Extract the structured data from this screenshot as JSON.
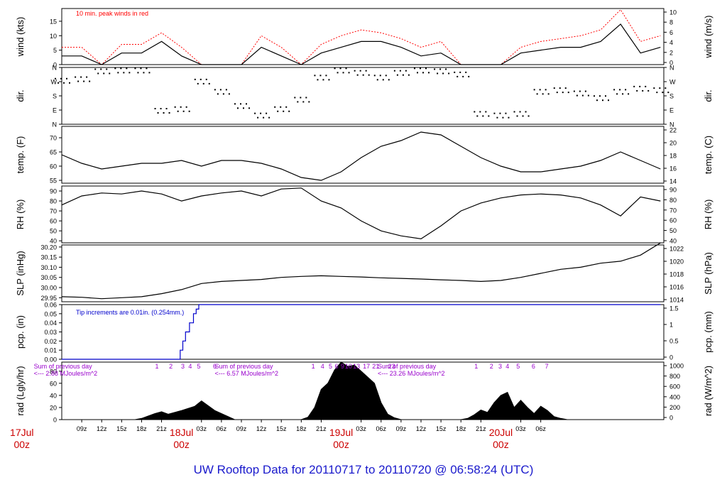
{
  "footer_title": "UW Rooftop Data for 20110717  to  20110720 @ 06:58:24  (UTC)",
  "colors": {
    "peak_winds": "#ff0000",
    "rain": "#0000cc",
    "annotation": "#9900cc",
    "date_label": "#cc0000",
    "footer": "#1a1acc"
  },
  "chart_data": [
    {
      "type": "line",
      "panel": "wind",
      "ylabel": "wind (kts)",
      "ylabel_right": "wind (m/s)",
      "ylim": [
        0,
        19.4
      ],
      "yticks_left": [
        0,
        5,
        10,
        15
      ],
      "yticks_right_labels": [
        "0",
        "2",
        "4",
        "6",
        "8",
        "10"
      ],
      "annotation": "10 min. peak winds in red",
      "series": [
        {
          "name": "10 min. peak winds",
          "x": [
            0,
            3,
            6,
            9,
            12,
            15,
            18,
            21,
            24,
            27,
            30,
            33,
            36,
            39,
            42,
            45,
            48,
            51,
            54,
            57,
            60,
            63,
            66,
            69,
            72,
            75,
            78,
            81,
            84,
            87,
            90
          ],
          "values": [
            6,
            6,
            0,
            7,
            7,
            11,
            6,
            0,
            0,
            0,
            10,
            6,
            0,
            7,
            10,
            12,
            11,
            9,
            6,
            8,
            0,
            0,
            0,
            6,
            8,
            9,
            10,
            12,
            19,
            8,
            10
          ]
        },
        {
          "name": "wind",
          "x": [
            0,
            3,
            6,
            9,
            12,
            15,
            18,
            21,
            24,
            27,
            30,
            33,
            36,
            39,
            42,
            45,
            48,
            51,
            54,
            57,
            60,
            63,
            66,
            69,
            72,
            75,
            78,
            81,
            84,
            87,
            90
          ],
          "values": [
            3,
            3,
            0,
            4,
            4,
            8,
            3,
            0,
            0,
            0,
            6,
            3,
            0,
            4,
            6,
            8,
            8,
            6,
            3,
            4,
            0,
            0,
            0,
            4,
            5,
            6,
            6,
            8,
            14,
            4,
            6
          ]
        }
      ]
    },
    {
      "type": "scatter",
      "panel": "dir",
      "ylabel": "dir.",
      "ylabel_right": "dir.",
      "ylim": [
        0,
        360
      ],
      "tick_labels": [
        "N",
        "E",
        "S",
        "W",
        "N"
      ],
      "series": [
        {
          "name": "dir",
          "x": [
            0,
            3,
            6,
            9,
            12,
            15,
            18,
            21,
            24,
            27,
            30,
            33,
            36,
            39,
            42,
            45,
            48,
            51,
            54,
            57,
            60,
            63,
            66,
            69,
            72,
            75,
            78,
            81,
            84,
            87,
            90
          ],
          "values": [
            280,
            290,
            340,
            345,
            345,
            90,
            100,
            275,
            210,
            120,
            60,
            100,
            160,
            300,
            345,
            330,
            300,
            330,
            345,
            340,
            320,
            70,
            60,
            70,
            210,
            220,
            200,
            170,
            210,
            230,
            220
          ]
        }
      ]
    },
    {
      "type": "line",
      "panel": "temp",
      "ylabel": "temp. (F)",
      "ylabel_right": "temp. (C)",
      "ylim": [
        54,
        74
      ],
      "yticks_left": [
        55,
        60,
        65,
        70
      ],
      "yticks_right_labels": [
        "14",
        "16",
        "18",
        "20",
        "22"
      ],
      "series": [
        {
          "name": "temp",
          "x": [
            0,
            3,
            6,
            9,
            12,
            15,
            18,
            21,
            24,
            27,
            30,
            33,
            36,
            39,
            42,
            45,
            48,
            51,
            54,
            57,
            60,
            63,
            66,
            69,
            72,
            75,
            78,
            81,
            84,
            87,
            90
          ],
          "values": [
            64,
            61,
            59,
            60,
            61,
            61,
            62,
            60,
            62,
            62,
            61,
            59,
            56,
            55,
            58,
            63,
            67,
            69,
            72,
            71,
            67,
            63,
            60,
            58,
            58,
            59,
            60,
            62,
            65,
            62,
            59
          ]
        }
      ]
    },
    {
      "type": "line",
      "panel": "rh",
      "ylabel": "RH (%)",
      "ylabel_right": "RH (%)",
      "ylim": [
        38,
        95
      ],
      "yticks_left": [
        40,
        50,
        60,
        70,
        80,
        90
      ],
      "yticks_right_labels": [
        "40",
        "50",
        "60",
        "70",
        "80",
        "90"
      ],
      "series": [
        {
          "name": "RH",
          "x": [
            0,
            3,
            6,
            9,
            12,
            15,
            18,
            21,
            24,
            27,
            30,
            33,
            36,
            39,
            42,
            45,
            48,
            51,
            54,
            57,
            60,
            63,
            66,
            69,
            72,
            75,
            78,
            81,
            84,
            87,
            90
          ],
          "values": [
            76,
            85,
            88,
            87,
            90,
            87,
            80,
            85,
            88,
            90,
            85,
            92,
            93,
            80,
            73,
            60,
            50,
            45,
            42,
            55,
            70,
            78,
            83,
            86,
            87,
            86,
            83,
            76,
            65,
            84,
            80
          ]
        }
      ]
    },
    {
      "type": "line",
      "panel": "slp",
      "ylabel": "SLP (inHg)",
      "ylabel_right": "SLP (hPa)",
      "ylim": [
        29.93,
        30.21
      ],
      "yticks_left": [
        29.95,
        30.0,
        30.05,
        30.1,
        30.15,
        30.2
      ],
      "yticks_right_labels": [
        "1014",
        "1016",
        "1018",
        "1020",
        "1022"
      ],
      "series": [
        {
          "name": "SLP",
          "x": [
            0,
            3,
            6,
            9,
            12,
            15,
            18,
            21,
            24,
            27,
            30,
            33,
            36,
            39,
            42,
            45,
            48,
            51,
            54,
            57,
            60,
            63,
            66,
            69,
            72,
            75,
            78,
            81,
            84,
            87,
            90
          ],
          "values": [
            29.955,
            29.952,
            29.945,
            29.95,
            29.955,
            29.97,
            29.99,
            30.02,
            30.03,
            30.035,
            30.04,
            30.05,
            30.055,
            30.058,
            30.055,
            30.052,
            30.048,
            30.045,
            30.042,
            30.038,
            30.035,
            30.03,
            30.035,
            30.05,
            30.07,
            30.09,
            30.1,
            30.12,
            30.13,
            30.16,
            30.22
          ]
        }
      ]
    },
    {
      "type": "line",
      "panel": "pcp",
      "ylabel": "pcp. (in)",
      "ylabel_right": "pcp. (mm)",
      "ylim": [
        0,
        0.06
      ],
      "yticks_left": [
        "0.00",
        "0.01",
        "0.02",
        "0.03",
        "0.04",
        "0.05",
        "0.06"
      ],
      "yticks_right_labels": [
        "0",
        "0.5",
        "1",
        "1.5"
      ],
      "annotation": "Tip increments are 0.01in. (0.254mm.)",
      "series": [
        {
          "name": "precip",
          "x": [
            0,
            17.6,
            17.8,
            18.2,
            18.6,
            19.2,
            19.8,
            20.2,
            20.6,
            90
          ],
          "values": [
            0,
            0,
            0.01,
            0.02,
            0.03,
            0.04,
            0.05,
            0.055,
            0.06,
            0.06
          ]
        }
      ]
    },
    {
      "type": "area",
      "panel": "rad",
      "ylabel": "rad (Lgly/hr)",
      "ylabel_right": "rad (W/m^2)",
      "ylim": [
        0,
        95
      ],
      "yticks_left": [
        0,
        20,
        40,
        60,
        80
      ],
      "yticks_right_labels": [
        "0",
        "200",
        "400",
        "600",
        "800",
        "1000"
      ],
      "hour_labels": [
        {
          "x": 14.3,
          "t": "1"
        },
        {
          "x": 16.4,
          "t": "2"
        },
        {
          "x": 18.2,
          "t": "3"
        },
        {
          "x": 19.3,
          "t": "4"
        },
        {
          "x": 20.6,
          "t": "5"
        },
        {
          "x": 23.0,
          "t": "6"
        },
        {
          "x": 37.8,
          "t": "1"
        },
        {
          "x": 39.2,
          "t": "4"
        },
        {
          "x": 40.4,
          "t": "5"
        },
        {
          "x": 41.3,
          "t": "6"
        },
        {
          "x": 42.2,
          "t": "9"
        },
        {
          "x": 43.1,
          "t": "10"
        },
        {
          "x": 44.3,
          "t": "13"
        },
        {
          "x": 45.8,
          "t": "17"
        },
        {
          "x": 47.2,
          "t": "21"
        },
        {
          "x": 49.6,
          "t": "23"
        },
        {
          "x": 62.3,
          "t": "1"
        },
        {
          "x": 64.6,
          "t": "2"
        },
        {
          "x": 65.9,
          "t": "3"
        },
        {
          "x": 67.0,
          "t": "4"
        },
        {
          "x": 68.6,
          "t": "5"
        },
        {
          "x": 70.9,
          "t": "6"
        },
        {
          "x": 72.9,
          "t": "7"
        }
      ],
      "daily_sums": [
        {
          "x": 0.6,
          "line1": "Sum of previous day",
          "line2": "<--- 2.88 MJoules/m^2"
        },
        {
          "x": 27.8,
          "line1": "Sum of previous day",
          "line2": "<--- 6.57 MJoules/m^2"
        },
        {
          "x": 52.3,
          "line1": "Sum of previous day",
          "line2": "<--- 23.26 MJoules/m^2"
        }
      ],
      "series": [
        {
          "name": "radiation",
          "x": [
            0,
            11,
            12,
            14,
            15,
            16,
            18,
            20,
            21,
            23,
            25,
            26,
            36,
            37,
            38,
            39,
            40,
            41,
            42,
            43,
            44,
            45,
            46,
            47,
            48,
            49,
            50,
            51,
            60,
            61,
            62,
            63,
            64,
            65,
            66,
            67,
            68,
            69,
            70,
            71,
            72,
            73,
            74,
            75,
            76
          ],
          "values": [
            0,
            0,
            2,
            10,
            13,
            9,
            15,
            22,
            31,
            15,
            5,
            0,
            0,
            4,
            20,
            50,
            60,
            82,
            95,
            88,
            90,
            80,
            70,
            60,
            28,
            9,
            3,
            0,
            0,
            2,
            8,
            16,
            12,
            28,
            40,
            45,
            20,
            32,
            20,
            10,
            22,
            15,
            5,
            2,
            0
          ]
        }
      ]
    }
  ],
  "time_axis": {
    "xlim": [
      0,
      90.5
    ],
    "tick_labels": [
      {
        "x": 3,
        "t": "09z"
      },
      {
        "x": 6,
        "t": "12z"
      },
      {
        "x": 9,
        "t": "15z"
      },
      {
        "x": 12,
        "t": "18z"
      },
      {
        "x": 15,
        "t": "21z"
      },
      {
        "x": 21,
        "t": "03z"
      },
      {
        "x": 24,
        "t": "06z"
      },
      {
        "x": 27,
        "t": "09z"
      },
      {
        "x": 30,
        "t": "12z"
      },
      {
        "x": 33,
        "t": "15z"
      },
      {
        "x": 36,
        "t": "18z"
      },
      {
        "x": 39,
        "t": "21z"
      },
      {
        "x": 45,
        "t": "03z"
      },
      {
        "x": 48,
        "t": "06z"
      },
      {
        "x": 51,
        "t": "09z"
      },
      {
        "x": 54,
        "t": "12z"
      },
      {
        "x": 57,
        "t": "15z"
      },
      {
        "x": 60,
        "t": "18z"
      },
      {
        "x": 63,
        "t": "21z"
      },
      {
        "x": 69,
        "t": "03z"
      },
      {
        "x": 72,
        "t": "06z"
      }
    ],
    "date_labels": [
      {
        "x": -6,
        "line1": "17Jul",
        "line2": "00z"
      },
      {
        "x": 18,
        "line1": "18Jul",
        "line2": "00z"
      },
      {
        "x": 42,
        "line1": "19Jul",
        "line2": "00z"
      },
      {
        "x": 66,
        "line1": "20Jul",
        "line2": "00z"
      }
    ]
  }
}
